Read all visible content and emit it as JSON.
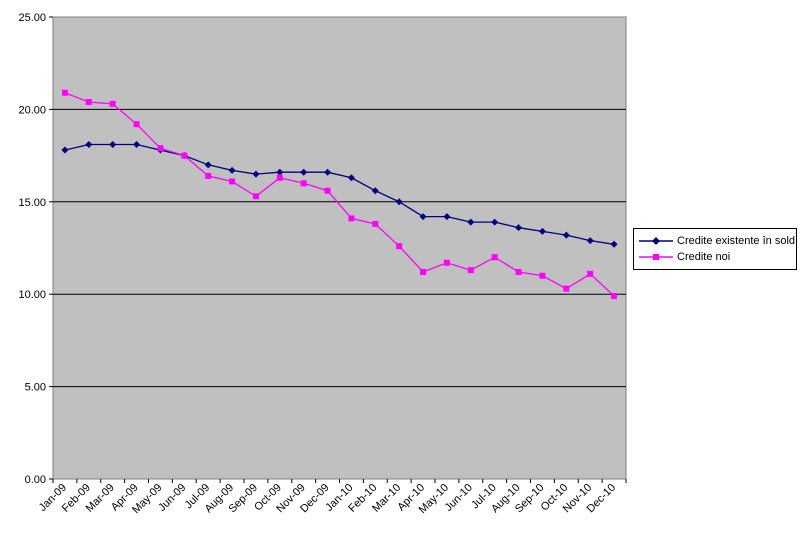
{
  "chart_data": {
    "type": "line",
    "title": "",
    "xlabel": "",
    "ylabel": "",
    "ylim": [
      0,
      25
    ],
    "yticks": [
      "0.00",
      "5.00",
      "10.00",
      "15.00",
      "20.00",
      "25.00"
    ],
    "grid": "horizontal",
    "legend_position": "right",
    "plot_background": "#c0c0c0",
    "categories": [
      "Jan-09",
      "Feb-09",
      "Mar-09",
      "Apr-09",
      "May-09",
      "Jun-09",
      "Jul-09",
      "Aug-09",
      "Sep-09",
      "Oct-09",
      "Nov-09",
      "Dec-09",
      "Jan-10",
      "Feb-10",
      "Mar-10",
      "Apr-10",
      "May-10",
      "Jun-10",
      "Jul-10",
      "Aug-10",
      "Sep-10",
      "Oct-10",
      "Nov-10",
      "Dec-10"
    ],
    "series": [
      {
        "name": "Credite existente în sold",
        "color": "#000080",
        "marker": "diamond",
        "values": [
          17.8,
          18.1,
          18.1,
          18.1,
          17.8,
          17.5,
          17.0,
          16.7,
          16.5,
          16.6,
          16.6,
          16.6,
          16.3,
          15.6,
          15.0,
          14.2,
          14.2,
          13.9,
          13.9,
          13.6,
          13.4,
          13.2,
          12.9,
          12.7
        ]
      },
      {
        "name": "Credite noi",
        "color": "#ff00ff",
        "marker": "square",
        "values": [
          20.9,
          20.4,
          20.3,
          19.2,
          17.9,
          17.5,
          16.4,
          16.1,
          15.3,
          16.3,
          16.0,
          15.6,
          14.1,
          13.8,
          12.6,
          11.2,
          11.7,
          11.3,
          12.0,
          11.2,
          11.0,
          10.3,
          11.1,
          9.9
        ]
      }
    ]
  }
}
